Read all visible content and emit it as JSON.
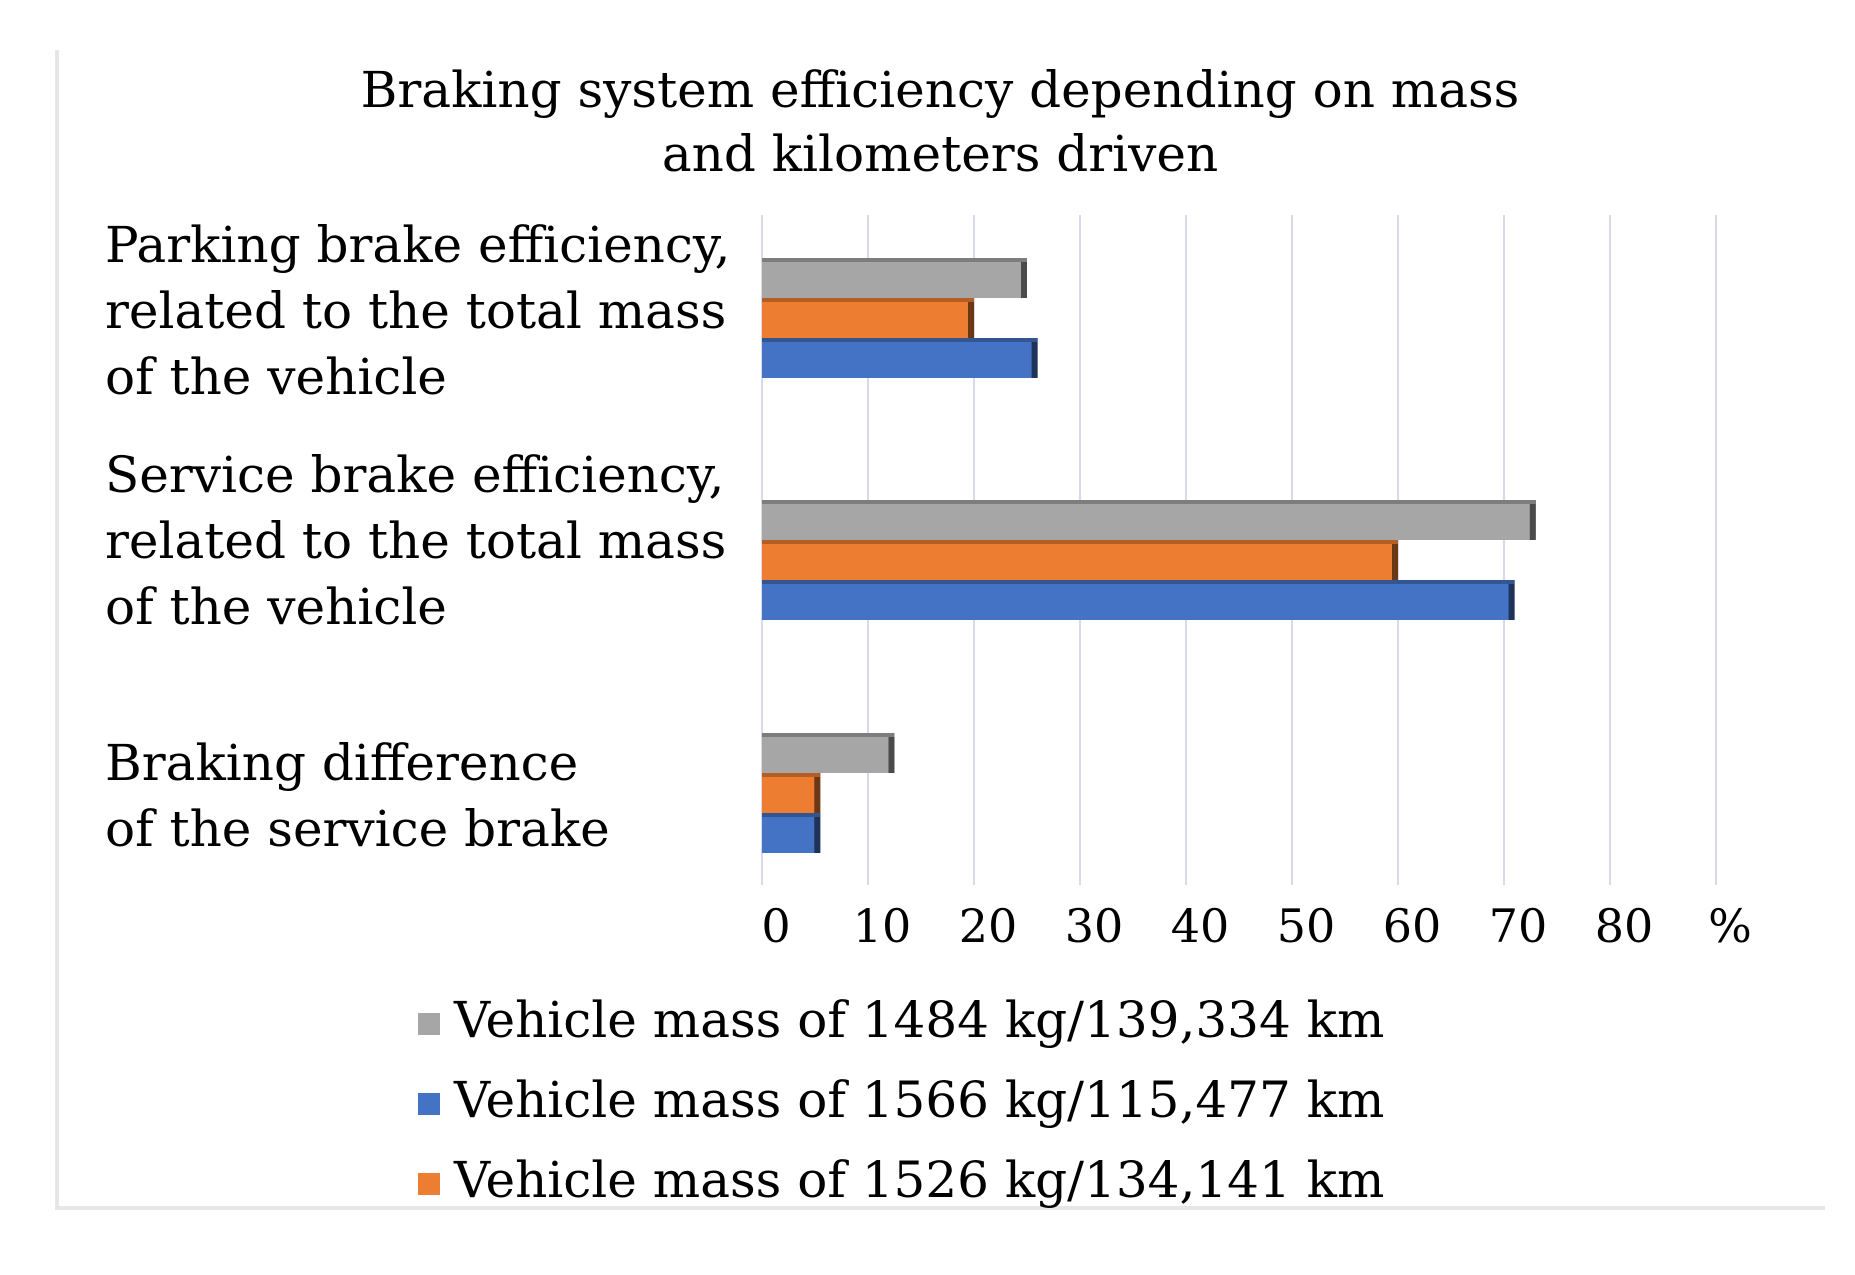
{
  "chart_data": {
    "type": "bar",
    "orientation": "horizontal",
    "title": "Braking system efficiency depending on mass and kilometers driven",
    "categories": [
      "Parking brake efficiency, related to the total mass of the vehicle",
      "Service brake efficiency, related to the total mass of the vehicle",
      "Braking difference of the service brake"
    ],
    "series": [
      {
        "name": "Vehicle mass of 1484 kg/139,334 km",
        "color": "#a6a6a6",
        "values": [
          25,
          73,
          12.5
        ]
      },
      {
        "name": "Vehicle mass of 1526 kg/134,141 km",
        "color": "#ed7d31",
        "values": [
          20,
          60,
          5.5
        ]
      },
      {
        "name": "Vehicle mass of 1566 kg/115,477 km",
        "color": "#4472c4",
        "values": [
          26,
          71,
          5.5
        ]
      }
    ],
    "legend_order": [
      0,
      2,
      1
    ],
    "xlim": [
      0,
      90
    ],
    "xticks": [
      "0",
      "10",
      "20",
      "30",
      "40",
      "50",
      "60",
      "70",
      "80",
      "%"
    ],
    "xlabel": "%",
    "ylabel": "",
    "grid": true,
    "legend_position": "bottom"
  }
}
